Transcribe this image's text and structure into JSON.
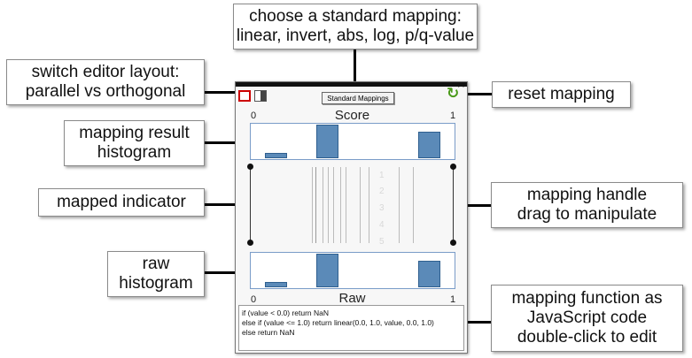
{
  "callouts": {
    "standard_mapping": "choose a standard mapping:\nlinear, invert, abs, log, p/q-value",
    "switch_layout": "switch editor layout:\nparallel vs orthogonal",
    "reset_mapping": "reset mapping",
    "result_histogram": "mapping result\nhistogram",
    "mapped_indicator": "mapped indicator",
    "mapping_handle": "mapping handle\ndrag to manipulate",
    "raw_histogram": "raw\nhistogram",
    "mapping_function": "mapping function as\nJavaScript code\ndouble-click to edit"
  },
  "editor": {
    "standard_mappings_label": "Standard Mappings",
    "score_label": "Score",
    "raw_label": "Raw",
    "axis_min": "0",
    "axis_max": "1",
    "close_glyph": "×",
    "reset_glyph": "↻",
    "code_lines": [
      "if (value < 0.0) return NaN",
      "else if (value <= 1.0) return linear(0.0, 1.0, value, 0.0, 1.0)",
      "else return NaN"
    ]
  },
  "histograms": {
    "result_bins": [
      0.15,
      1.0,
      0.0,
      0.78
    ],
    "raw_bins": [
      0.15,
      1.0,
      0.0,
      0.78
    ]
  },
  "colors": {
    "bar_fill": "#5b8ab8",
    "bar_border": "#2f5f8f",
    "layout_button_highlight": "#cc0000",
    "reset_icon": "#4a9a1a"
  }
}
